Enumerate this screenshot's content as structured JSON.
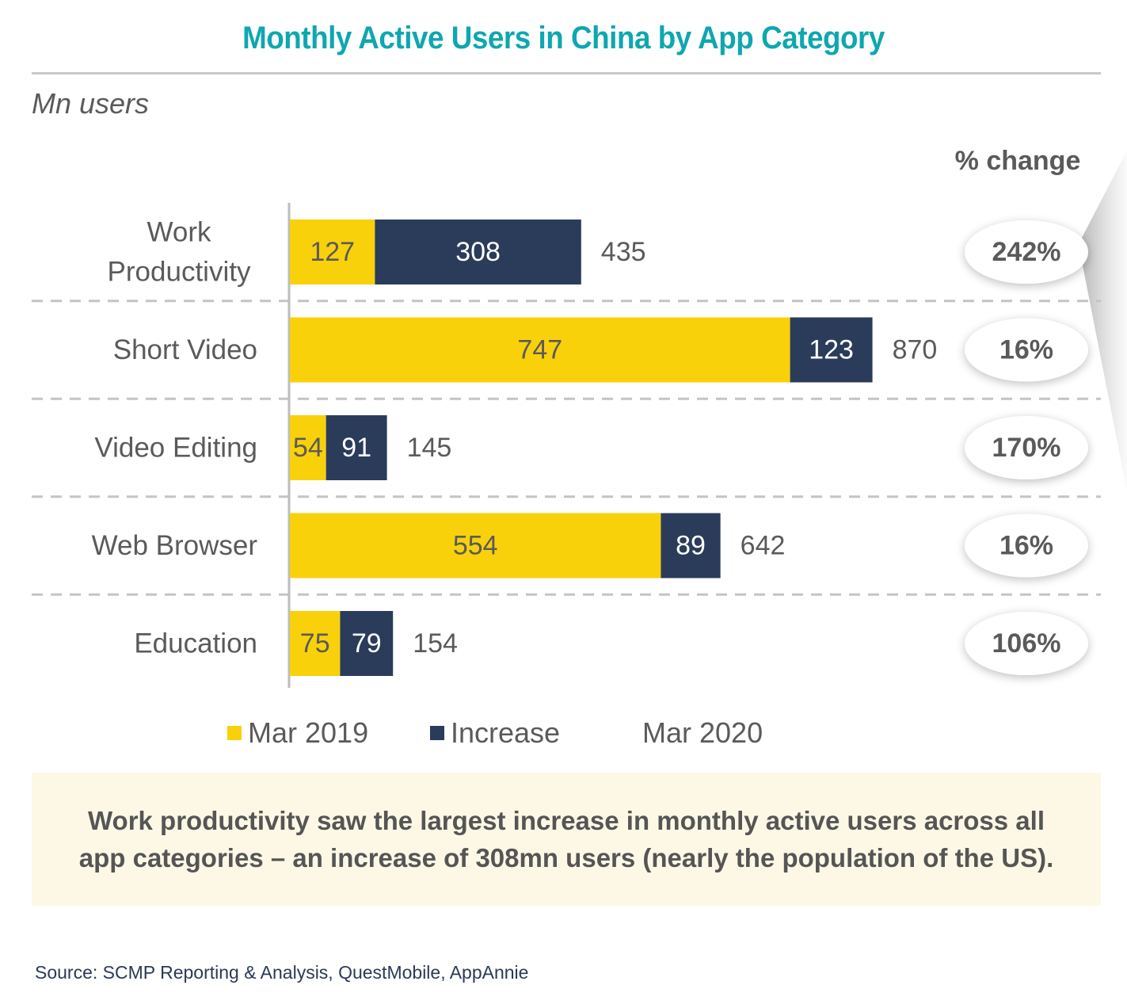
{
  "title": "Monthly Active Users in China by App Category",
  "unit_label": "Mn users",
  "pct_change_header": "% change",
  "colors": {
    "title": "#0ea7b0",
    "mar2019": "#f9d10a",
    "increase": "#2b3c5a",
    "text": "#5a5a5a",
    "callout_bg": "#fdf8e6"
  },
  "legend": {
    "mar2019": "Mar 2019",
    "increase": "Increase",
    "mar2020": "Mar 2020"
  },
  "callout": {
    "line1": "Work productivity saw the largest increase in monthly active users across all",
    "line2": "app categories – an increase of 308mn users (nearly the population of the US)."
  },
  "source": "Source: SCMP Reporting & Analysis, QuestMobile, AppAnnie",
  "chart_data": {
    "type": "bar",
    "orientation": "horizontal",
    "stacked": true,
    "title": "Monthly Active Users in China by App Category",
    "xlabel": "",
    "ylabel": "Mn users",
    "categories": [
      [
        "Work",
        "Productivity"
      ],
      [
        "Short Video"
      ],
      [
        "Video Editing"
      ],
      [
        "Web Browser"
      ],
      [
        "Education"
      ]
    ],
    "series": [
      {
        "name": "Mar 2019",
        "values": [
          127,
          747,
          54,
          554,
          75
        ]
      },
      {
        "name": "Increase",
        "values": [
          308,
          123,
          91,
          89,
          79
        ]
      }
    ],
    "totals": {
      "name": "Mar 2020",
      "values": [
        435,
        870,
        145,
        642,
        154
      ]
    },
    "pct_change": [
      "242%",
      "16%",
      "170%",
      "16%",
      "106%"
    ],
    "highlight_index": 0,
    "xlim": [
      0,
      1000
    ],
    "grid": false,
    "row_separators": "dashed",
    "legend_position": "bottom"
  }
}
